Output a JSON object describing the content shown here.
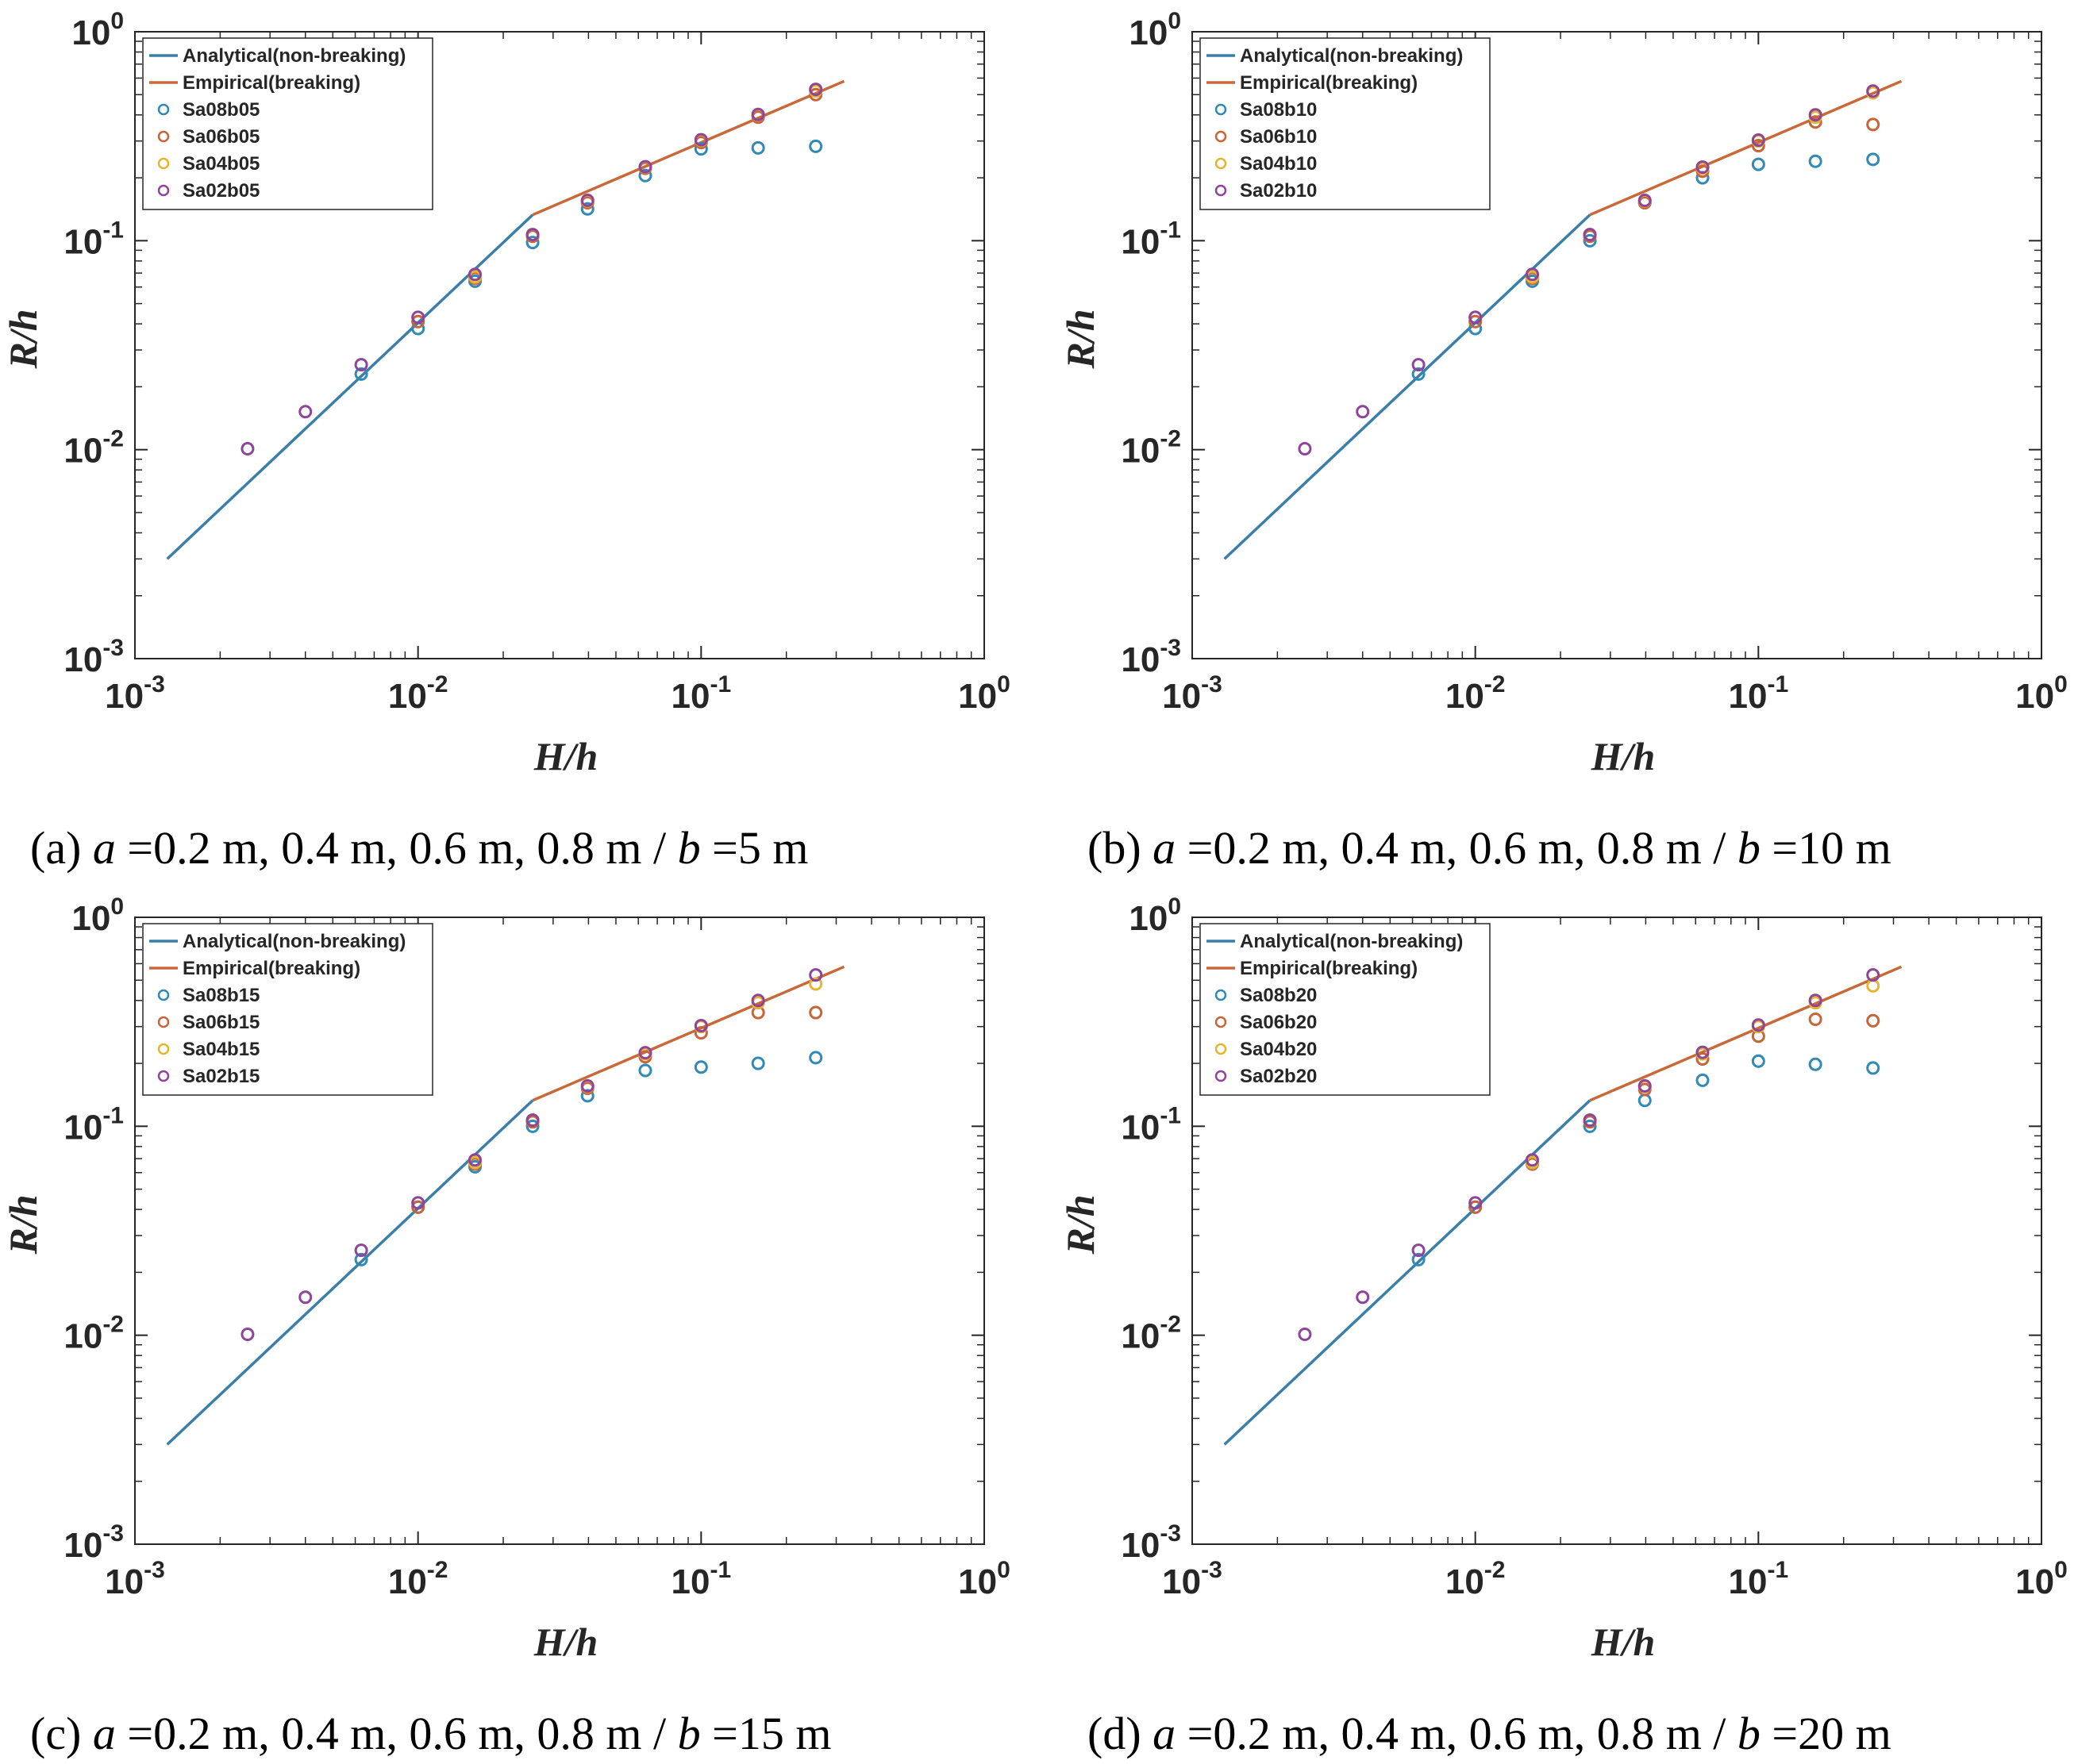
{
  "colors": {
    "analytical": "#3a7fa8",
    "empirical": "#c8693a",
    "a08": "#2f8ab5",
    "a06": "#c8643a",
    "a04": "#e6b52e",
    "a02": "#8e4499",
    "axis": "#262626"
  },
  "chart_data": [
    {
      "type": "line+scatter",
      "panel": "a",
      "caption": {
        "prefix": "(a) ",
        "a_symbol": "a",
        "a_values": " =0.2 m, 0.4 m, 0.6 m, 0.8 m / ",
        "b_symbol": "b",
        "b_value": " =5 m"
      },
      "xlabel": "H/h",
      "ylabel": "R/h",
      "xscale": "log",
      "yscale": "log",
      "xlim": [
        0.001,
        1
      ],
      "ylim": [
        0.001,
        1
      ],
      "xticks": [
        "10^-3",
        "10^-2",
        "10^-1",
        "10^0"
      ],
      "yticks": [
        "10^-3",
        "10^-2",
        "10^-1",
        "10^0"
      ],
      "legend_position": "top-left",
      "lines": [
        {
          "name": "Analytical(non-breaking)",
          "color_key": "analytical",
          "x": [
            0.0013,
            0.0254
          ],
          "y": [
            0.003,
            0.133
          ]
        },
        {
          "name": "Empirical(breaking)",
          "color_key": "empirical",
          "x": [
            0.0254,
            0.32
          ],
          "y": [
            0.133,
            0.58
          ]
        }
      ],
      "series": [
        {
          "name": "Sa08b05",
          "color_key": "a08",
          "x": [
            0.0063,
            0.01,
            0.0159,
            0.0254,
            0.0397,
            0.0635,
            0.1,
            0.159,
            0.254
          ],
          "y": [
            0.023,
            0.038,
            0.064,
            0.098,
            0.142,
            0.205,
            0.275,
            0.278,
            0.283
          ]
        },
        {
          "name": "Sa06b05",
          "color_key": "a06",
          "x": [
            0.01,
            0.0159,
            0.0254,
            0.0397,
            0.0635,
            0.1,
            0.159,
            0.254
          ],
          "y": [
            0.041,
            0.066,
            0.105,
            0.152,
            0.222,
            0.295,
            0.39,
            0.5
          ]
        },
        {
          "name": "Sa04b05",
          "color_key": "a04",
          "x": [
            0.0159,
            0.0254,
            0.0397,
            0.0635,
            0.1,
            0.159,
            0.254
          ],
          "y": [
            0.067,
            0.107,
            0.155,
            0.225,
            0.302,
            0.4,
            0.52
          ]
        },
        {
          "name": "Sa02b05",
          "color_key": "a02",
          "x": [
            0.0025,
            0.004,
            0.0063,
            0.01,
            0.0159,
            0.0254,
            0.0397,
            0.0635,
            0.1,
            0.159,
            0.254
          ],
          "y": [
            0.0101,
            0.0152,
            0.0255,
            0.043,
            0.069,
            0.107,
            0.156,
            0.226,
            0.304,
            0.402,
            0.53
          ]
        }
      ]
    },
    {
      "type": "line+scatter",
      "panel": "b",
      "caption": {
        "prefix": "(b) ",
        "a_symbol": "a",
        "a_values": " =0.2 m, 0.4 m, 0.6 m, 0.8 m / ",
        "b_symbol": "b",
        "b_value": " =10 m"
      },
      "xlabel": "H/h",
      "ylabel": "R/h",
      "xscale": "log",
      "yscale": "log",
      "xlim": [
        0.001,
        1
      ],
      "ylim": [
        0.001,
        1
      ],
      "xticks": [
        "10^-3",
        "10^-2",
        "10^-1",
        "10^0"
      ],
      "yticks": [
        "10^-3",
        "10^-2",
        "10^-1",
        "10^0"
      ],
      "legend_position": "top-left",
      "lines": [
        {
          "name": "Analytical(non-breaking)",
          "color_key": "analytical",
          "x": [
            0.0013,
            0.0254
          ],
          "y": [
            0.003,
            0.133
          ]
        },
        {
          "name": "Empirical(breaking)",
          "color_key": "empirical",
          "x": [
            0.0254,
            0.32
          ],
          "y": [
            0.133,
            0.58
          ]
        }
      ],
      "series": [
        {
          "name": "Sa08b10",
          "color_key": "a08",
          "x": [
            0.0063,
            0.01,
            0.0159,
            0.0254,
            0.0397,
            0.0635,
            0.1,
            0.159,
            0.254
          ],
          "y": [
            0.023,
            0.038,
            0.064,
            0.1,
            0.152,
            0.2,
            0.232,
            0.24,
            0.245
          ]
        },
        {
          "name": "Sa06b10",
          "color_key": "a06",
          "x": [
            0.01,
            0.0159,
            0.0254,
            0.0397,
            0.0635,
            0.1,
            0.159,
            0.254
          ],
          "y": [
            0.041,
            0.066,
            0.105,
            0.152,
            0.215,
            0.285,
            0.37,
            0.36
          ]
        },
        {
          "name": "Sa04b10",
          "color_key": "a04",
          "x": [
            0.0159,
            0.0254,
            0.0397,
            0.0635,
            0.1,
            0.159,
            0.254
          ],
          "y": [
            0.067,
            0.107,
            0.155,
            0.222,
            0.3,
            0.39,
            0.51
          ]
        },
        {
          "name": "Sa02b10",
          "color_key": "a02",
          "x": [
            0.0025,
            0.004,
            0.0063,
            0.01,
            0.0159,
            0.0254,
            0.0397,
            0.0635,
            0.1,
            0.159,
            0.254
          ],
          "y": [
            0.0101,
            0.0152,
            0.0255,
            0.043,
            0.069,
            0.107,
            0.156,
            0.225,
            0.303,
            0.4,
            0.52
          ]
        }
      ]
    },
    {
      "type": "line+scatter",
      "panel": "c",
      "caption": {
        "prefix": "(c) ",
        "a_symbol": "a",
        "a_values": " =0.2 m, 0.4 m, 0.6 m, 0.8 m / ",
        "b_symbol": "b",
        "b_value": " =15 m"
      },
      "xlabel": "H/h",
      "ylabel": "R/h",
      "xscale": "log",
      "yscale": "log",
      "xlim": [
        0.001,
        1
      ],
      "ylim": [
        0.001,
        1
      ],
      "xticks": [
        "10^-3",
        "10^-2",
        "10^-1",
        "10^0"
      ],
      "yticks": [
        "10^-3",
        "10^-2",
        "10^-1",
        "10^0"
      ],
      "legend_position": "top-left",
      "lines": [
        {
          "name": "Analytical(non-breaking)",
          "color_key": "analytical",
          "x": [
            0.0013,
            0.0254
          ],
          "y": [
            0.003,
            0.133
          ]
        },
        {
          "name": "Empirical(breaking)",
          "color_key": "empirical",
          "x": [
            0.0254,
            0.32
          ],
          "y": [
            0.133,
            0.58
          ]
        }
      ],
      "series": [
        {
          "name": "Sa08b15",
          "color_key": "a08",
          "x": [
            0.0063,
            0.01,
            0.0159,
            0.0254,
            0.0397,
            0.0635,
            0.1,
            0.159,
            0.254
          ],
          "y": [
            0.023,
            0.041,
            0.064,
            0.1,
            0.14,
            0.185,
            0.192,
            0.2,
            0.213
          ]
        },
        {
          "name": "Sa06b15",
          "color_key": "a06",
          "x": [
            0.01,
            0.0159,
            0.0254,
            0.0397,
            0.0635,
            0.1,
            0.159,
            0.254
          ],
          "y": [
            0.041,
            0.066,
            0.105,
            0.152,
            0.215,
            0.28,
            0.35,
            0.35
          ]
        },
        {
          "name": "Sa04b15",
          "color_key": "a04",
          "x": [
            0.0159,
            0.0254,
            0.0397,
            0.0635,
            0.1,
            0.159,
            0.254
          ],
          "y": [
            0.067,
            0.107,
            0.155,
            0.222,
            0.3,
            0.39,
            0.48
          ]
        },
        {
          "name": "Sa02b15",
          "color_key": "a02",
          "x": [
            0.0025,
            0.004,
            0.0063,
            0.01,
            0.0159,
            0.0254,
            0.0397,
            0.0635,
            0.1,
            0.159,
            0.254
          ],
          "y": [
            0.0101,
            0.0152,
            0.0255,
            0.043,
            0.069,
            0.107,
            0.156,
            0.225,
            0.303,
            0.4,
            0.53
          ]
        }
      ]
    },
    {
      "type": "line+scatter",
      "panel": "d",
      "caption": {
        "prefix": "(d) ",
        "a_symbol": "a",
        "a_values": " =0.2 m, 0.4 m, 0.6 m, 0.8 m / ",
        "b_symbol": "b",
        "b_value": " =20 m"
      },
      "xlabel": "H/h",
      "ylabel": "R/h",
      "xscale": "log",
      "yscale": "log",
      "xlim": [
        0.001,
        1
      ],
      "ylim": [
        0.001,
        1
      ],
      "xticks": [
        "10^-3",
        "10^-2",
        "10^-1",
        "10^0"
      ],
      "yticks": [
        "10^-3",
        "10^-2",
        "10^-1",
        "10^0"
      ],
      "legend_position": "top-left",
      "lines": [
        {
          "name": "Analytical(non-breaking)",
          "color_key": "analytical",
          "x": [
            0.0013,
            0.0254
          ],
          "y": [
            0.003,
            0.133
          ]
        },
        {
          "name": "Empirical(breaking)",
          "color_key": "empirical",
          "x": [
            0.0254,
            0.32
          ],
          "y": [
            0.133,
            0.58
          ]
        }
      ],
      "series": [
        {
          "name": "Sa08b20",
          "color_key": "a08",
          "x": [
            0.0063,
            0.01,
            0.0159,
            0.0254,
            0.0397,
            0.0635,
            0.1,
            0.159,
            0.254
          ],
          "y": [
            0.023,
            0.041,
            0.066,
            0.1,
            0.133,
            0.166,
            0.205,
            0.198,
            0.19
          ]
        },
        {
          "name": "Sa06b20",
          "color_key": "a06",
          "x": [
            0.01,
            0.0159,
            0.0254,
            0.0397,
            0.0635,
            0.1,
            0.159,
            0.254
          ],
          "y": [
            0.041,
            0.066,
            0.105,
            0.15,
            0.21,
            0.27,
            0.325,
            0.32
          ]
        },
        {
          "name": "Sa04b20",
          "color_key": "a04",
          "x": [
            0.0159,
            0.0254,
            0.0397,
            0.0635,
            0.1,
            0.159,
            0.254
          ],
          "y": [
            0.067,
            0.107,
            0.155,
            0.222,
            0.3,
            0.39,
            0.47
          ]
        },
        {
          "name": "Sa02b20",
          "color_key": "a02",
          "x": [
            0.0025,
            0.004,
            0.0063,
            0.01,
            0.0159,
            0.0254,
            0.0397,
            0.0635,
            0.1,
            0.159,
            0.254
          ],
          "y": [
            0.0101,
            0.0152,
            0.0255,
            0.043,
            0.069,
            0.107,
            0.156,
            0.226,
            0.305,
            0.4,
            0.53
          ]
        }
      ]
    }
  ]
}
